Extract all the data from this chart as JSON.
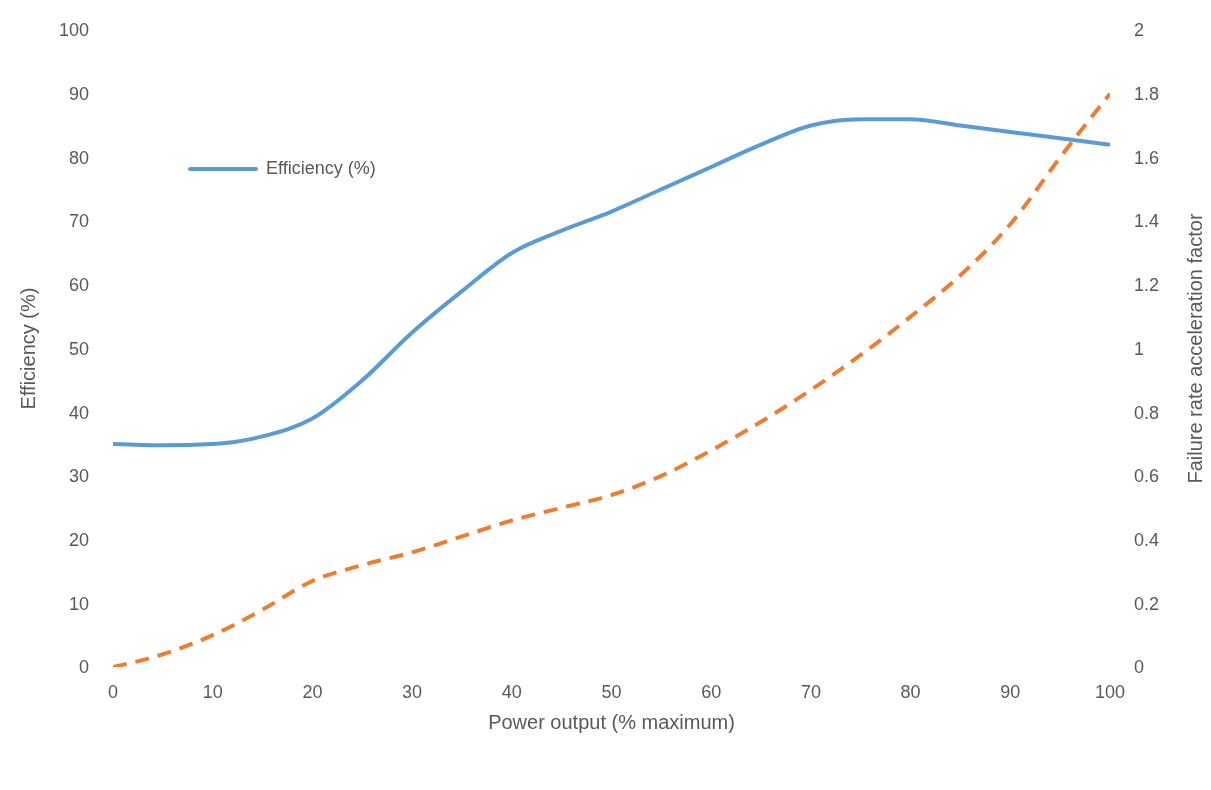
{
  "chart_data": {
    "type": "line",
    "xlabel": "Power output (% maximum)",
    "ylabel": "Efficiency (%)",
    "y2label": "Failure rate acceleration factor",
    "x": [
      0,
      5,
      10,
      15,
      20,
      25,
      30,
      35,
      40,
      45,
      50,
      55,
      60,
      65,
      70,
      75,
      80,
      85,
      90,
      95,
      100
    ],
    "series": [
      {
        "name": "Efficiency (%)",
        "color": "#5b9bd5",
        "line_style": "solid",
        "values": [
          35,
          34.8,
          35,
          36.2,
          39,
          45,
          52.5,
          59,
          65,
          68.5,
          71.5,
          75,
          78.5,
          82,
          85,
          86,
          86,
          85,
          84,
          83,
          82
        ]
      },
      {
        "color": "#ed7d31",
        "line_style": "dashed",
        "axis": "y2",
        "values": [
          0,
          0.04,
          0.1,
          0.18,
          0.27,
          0.32,
          0.36,
          0.41,
          0.46,
          0.5,
          0.54,
          0.6,
          0.68,
          0.77,
          0.87,
          0.98,
          1.1,
          1.23,
          1.39,
          1.6,
          1.8
        ]
      }
    ],
    "xlim": [
      0,
      100
    ],
    "xticks": [
      0,
      10,
      20,
      30,
      40,
      50,
      60,
      70,
      80,
      90,
      100
    ],
    "ylim": [
      0,
      100
    ],
    "yticks": [
      0,
      10,
      20,
      30,
      40,
      50,
      60,
      70,
      80,
      90,
      100
    ],
    "y2lim": [
      0,
      2
    ],
    "y2ticks": [
      0,
      0.2,
      0.4,
      0.6,
      0.8,
      1,
      1.2,
      1.4,
      1.6,
      1.8,
      2
    ],
    "legend": "top left",
    "marker": "none",
    "grid": false
  }
}
